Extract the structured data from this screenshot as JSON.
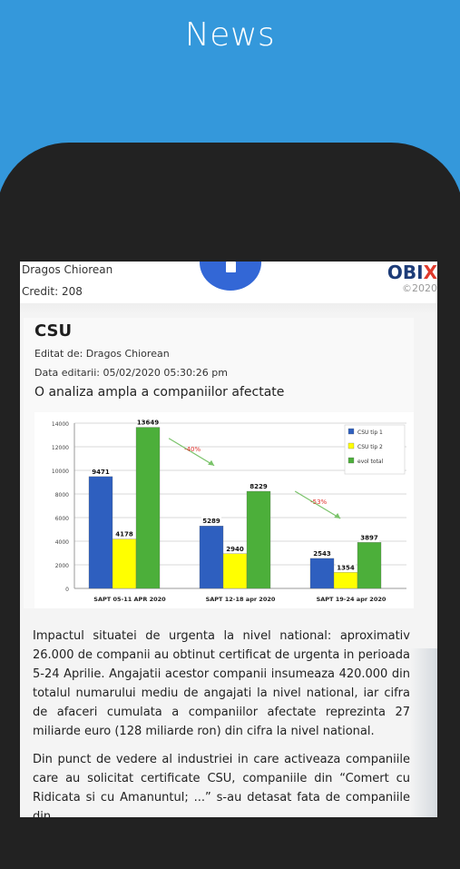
{
  "header": {
    "title": "News"
  },
  "topbar": {
    "author": "Dragos Chiorean",
    "credit": "Credit: 208",
    "logo_text": "OBIX",
    "copyright": "©2020"
  },
  "article": {
    "title": "CSU",
    "edited_by": "Editat de: Dragos Chiorean",
    "edit_date": "Data editarii: 05/02/2020 05:30:26 pm",
    "subtitle": "O analiza ampla a companiilor afectate",
    "paragraph1": "Impactul situatei de urgenta la nivel national: aproximativ 26.000 de companii au obtinut certificat de urgenta in perioada 5-24 Aprilie. Angajatii acestor companii insumeaza 420.000 din totalul numarului mediu de angajati la nivel national, iar cifra de afaceri cumulata a companiilor afectate reprezinta 27 miliarde euro (128 miliarde ron) din cifra la nivel national.",
    "paragraph2": "Din punct de vedere al industriei in care activeaza companiile care au solicitat certificate CSU, companiile din “Comert cu Ridicata si cu Amanuntul; ...” s-au detasat fata de companiile din"
  },
  "chart_data": {
    "type": "bar",
    "categories": [
      "SAPT 05-11 APR 2020",
      "SAPT 12-18 apr 2020",
      "SAPT 19-24 apr 2020"
    ],
    "series": [
      {
        "name": "CSU tip 1",
        "color": "#2e5fbf",
        "values": [
          9471,
          5289,
          2543
        ]
      },
      {
        "name": "CSU tip 2",
        "color": "#ffff00",
        "values": [
          4178,
          2940,
          1354
        ]
      },
      {
        "name": "evol total",
        "color": "#4caf3a",
        "values": [
          13649,
          8229,
          3897
        ]
      }
    ],
    "ylim": [
      0,
      14000
    ],
    "yticks": [
      "0",
      "2000",
      "4000",
      "6000",
      "8000",
      "10000",
      "12000",
      "14000"
    ],
    "annotations": [
      "-40%",
      "-53%"
    ],
    "legend": "top-right",
    "grid": true
  }
}
